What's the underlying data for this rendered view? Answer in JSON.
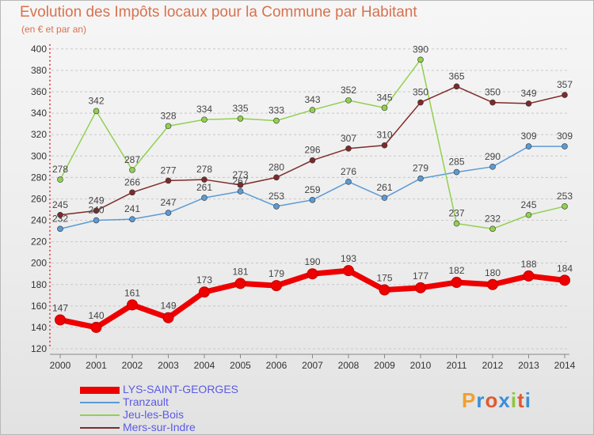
{
  "header": {
    "title": "Evolution des Impôts locaux pour la Commune par Habitant",
    "subtitle": "(en € et par an)"
  },
  "logo": {
    "text": "Proxiti",
    "colors": [
      "#f0a030",
      "#3a8fd8",
      "#e05a30",
      "#3a8fd8",
      "#8cc63f",
      "#e05a30",
      "#3a8fd8"
    ]
  },
  "chart_data": {
    "type": "line",
    "title": "Evolution des Impôts locaux pour la Commune par Habitant",
    "subtitle": "(en € et par an)",
    "x": [
      2000,
      2001,
      2002,
      2003,
      2004,
      2005,
      2006,
      2007,
      2008,
      2009,
      2010,
      2011,
      2012,
      2013,
      2014
    ],
    "ylim": [
      120,
      400
    ],
    "yticks": [
      120,
      140,
      160,
      180,
      200,
      220,
      240,
      260,
      280,
      300,
      320,
      340,
      360,
      380,
      400
    ],
    "grid": "horizontal dashed",
    "legend_position": "bottom",
    "series": [
      {
        "name": "LYS-SAINT-GEORGES",
        "color": "#ee0000",
        "values": [
          147,
          140,
          161,
          149,
          173,
          181,
          179,
          190,
          193,
          175,
          177,
          182,
          180,
          188,
          184
        ]
      },
      {
        "name": "Tranzault",
        "color": "#5b9bd5",
        "values": [
          232,
          240,
          241,
          247,
          261,
          267,
          253,
          259,
          276,
          261,
          279,
          285,
          290,
          309,
          309
        ]
      },
      {
        "name": "Jeu-les-Bois",
        "color": "#92d050",
        "values": [
          278,
          342,
          287,
          328,
          334,
          335,
          333,
          343,
          352,
          345,
          390,
          237,
          232,
          245,
          253
        ]
      },
      {
        "name": "Mers-sur-Indre",
        "color": "#7f2a2a",
        "values": [
          245,
          249,
          266,
          277,
          278,
          273,
          280,
          296,
          307,
          310,
          350,
          365,
          350,
          349,
          357
        ]
      }
    ],
    "value_labels": [
      [
        "147",
        "140",
        "161",
        "149",
        "173",
        "181",
        "179",
        "190",
        "193",
        "175",
        "177",
        "182",
        "180",
        "188",
        "184"
      ],
      [
        "232",
        "240",
        "241",
        "247",
        "261",
        "267",
        "253",
        "259",
        "276",
        "261",
        "279",
        "285",
        "290",
        "309",
        "309"
      ],
      [
        "278",
        "342",
        "287",
        "328",
        "334",
        "335",
        "333",
        "343",
        "352",
        "345",
        "390",
        "237",
        "232",
        "245",
        "253"
      ],
      [
        "245",
        "249",
        "266",
        "277",
        "278",
        "273",
        "280",
        "296",
        "307",
        "310",
        "350",
        "365",
        "350",
        "349",
        "357"
      ]
    ]
  }
}
